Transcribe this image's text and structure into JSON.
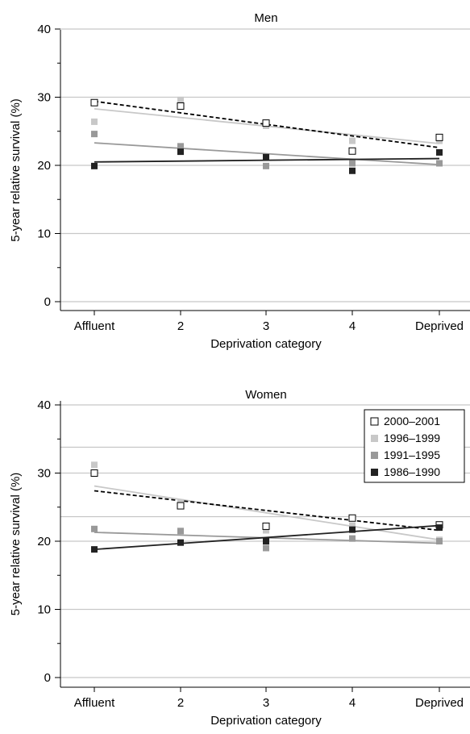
{
  "chart_data": [
    {
      "type": "scatter",
      "title": "Men",
      "xlabel": "Deprivation category",
      "ylabel": "5-year relative survival (%)",
      "categories": [
        "Affluent",
        "2",
        "3",
        "4",
        "Deprived"
      ],
      "ylim": [
        0,
        40
      ],
      "yticks": [
        0,
        10,
        20,
        30,
        40
      ],
      "grid": "horizontal",
      "series": [
        {
          "name": "2000–2001",
          "marker": "open-square",
          "color": "#000000",
          "line_style": "dashed",
          "values": [
            29.2,
            28.7,
            26.2,
            22.1,
            24.1
          ],
          "fit": [
            29.4,
            22.6
          ]
        },
        {
          "name": "1996–1999",
          "marker": "filled-square",
          "color": "#c8c8c8",
          "line_style": "solid",
          "values": [
            26.4,
            29.6,
            25.8,
            23.6,
            23.6
          ],
          "fit": [
            28.3,
            23.2
          ]
        },
        {
          "name": "1991–1995",
          "marker": "filled-square",
          "color": "#999999",
          "line_style": "solid",
          "values": [
            24.6,
            22.8,
            19.9,
            20.3,
            20.3
          ],
          "fit": [
            23.3,
            20.1
          ]
        },
        {
          "name": "1986–1990",
          "marker": "filled-square",
          "color": "#222222",
          "line_style": "solid",
          "values": [
            19.9,
            22.0,
            21.2,
            19.2,
            21.9
          ],
          "fit": [
            20.5,
            21.0
          ]
        }
      ]
    },
    {
      "type": "scatter",
      "title": "Women",
      "xlabel": "Deprivation category",
      "ylabel": "5-year relative survival (%)",
      "categories": [
        "Affluent",
        "2",
        "3",
        "4",
        "Deprived"
      ],
      "ylim": [
        0,
        40
      ],
      "yticks": [
        0,
        10,
        20,
        30,
        40
      ],
      "grid": "horizontal",
      "legend_position": "top-right",
      "series": [
        {
          "name": "2000–2001",
          "marker": "open-square",
          "color": "#000000",
          "line_style": "dashed",
          "values": [
            30.0,
            25.2,
            22.2,
            23.4,
            22.4
          ],
          "fit": [
            27.4,
            21.6
          ]
        },
        {
          "name": "1996–1999",
          "marker": "filled-square",
          "color": "#c8c8c8",
          "line_style": "solid",
          "values": [
            31.2,
            25.7,
            21.6,
            22.3,
            20.2
          ],
          "fit": [
            28.1,
            20.2
          ]
        },
        {
          "name": "1991–1995",
          "marker": "filled-square",
          "color": "#999999",
          "line_style": "solid",
          "values": [
            21.8,
            21.5,
            19.0,
            20.4,
            20.0
          ],
          "fit": [
            21.3,
            19.7
          ]
        },
        {
          "name": "1986–1990",
          "marker": "filled-square",
          "color": "#222222",
          "line_style": "solid",
          "values": [
            18.8,
            19.8,
            20.0,
            21.7,
            22.0
          ],
          "fit": [
            18.8,
            22.3
          ]
        }
      ]
    }
  ]
}
